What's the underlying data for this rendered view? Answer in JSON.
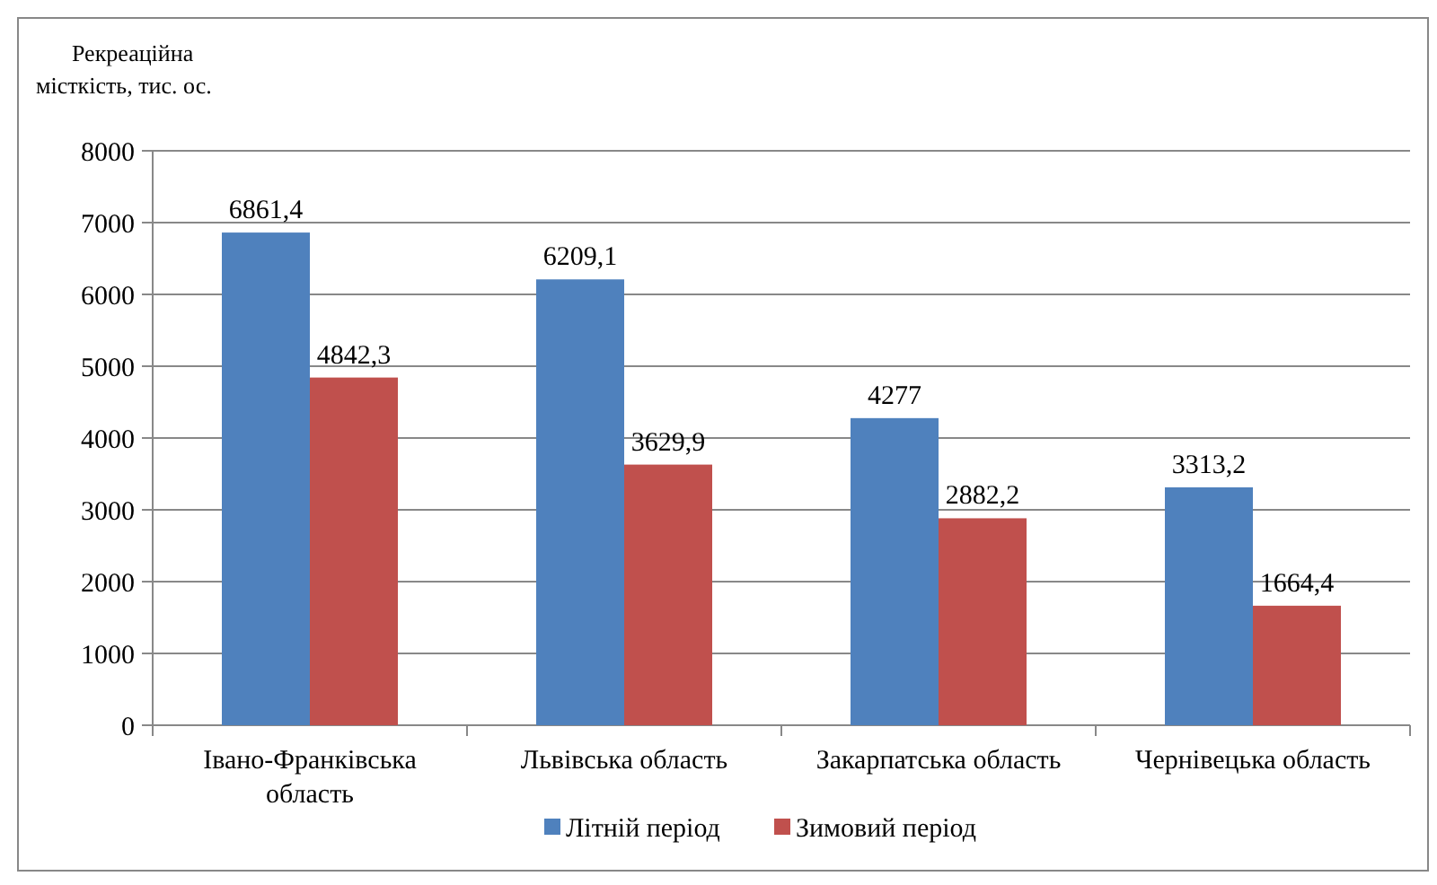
{
  "chart_data": {
    "type": "bar",
    "ylabel": "Рекреаційна\nмісткість, тис. ос.",
    "categories": [
      "Івано-Франківська область",
      "Львівська область",
      "Закарпатська область",
      "Чернівецька область"
    ],
    "series": [
      {
        "name": "Літній період",
        "color": "#4f81bd",
        "values": [
          6861.4,
          6209.1,
          4277,
          3313.2
        ],
        "value_labels": [
          "6861,4",
          "6209,1",
          "4277",
          "3313,2"
        ]
      },
      {
        "name": "Зимовий період",
        "color": "#c0504d",
        "values": [
          4842.3,
          3629.9,
          2882.2,
          1664.4
        ],
        "value_labels": [
          "4842,3",
          "3629,9",
          "2882,2",
          "1664,4"
        ]
      }
    ],
    "ylim": [
      0,
      8000
    ],
    "yticks": [
      0,
      1000,
      2000,
      3000,
      4000,
      5000,
      6000,
      7000,
      8000
    ],
    "grid": "y",
    "legend": "bottom"
  }
}
